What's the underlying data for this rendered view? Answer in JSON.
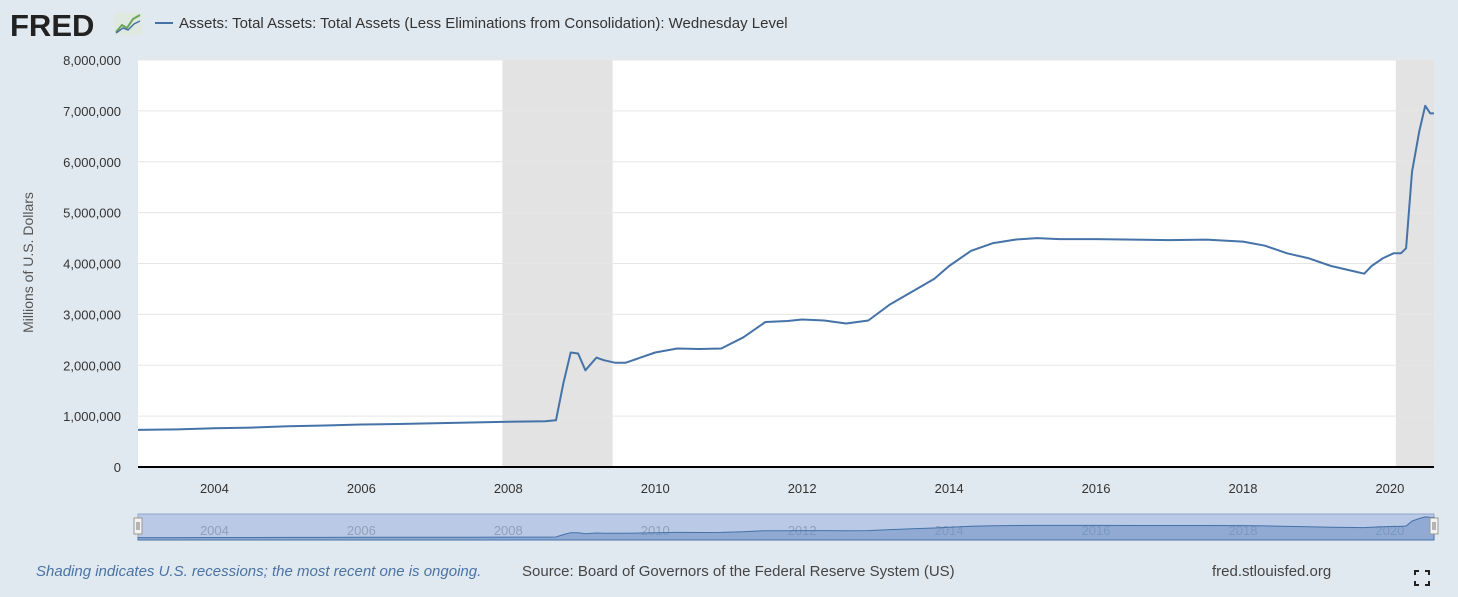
{
  "header": {
    "logo": "FRED",
    "legend_label": "Assets: Total Assets: Total Assets (Less Eliminations from Consolidation): Wednesday Level"
  },
  "footer": {
    "shading_note": "Shading indicates U.S. recessions; the most recent one is ongoing.",
    "source": "Source: Board of Governors of the Federal Reserve System (US)",
    "site": "fred.stlouisfed.org"
  },
  "colors": {
    "line": "#4572a7",
    "recession": "#e3e3e3",
    "background": "#e1e9f0",
    "plot": "#ffffff"
  },
  "icons": [
    "fred-logo-graph-icon",
    "fullscreen-icon"
  ],
  "chart_data": {
    "type": "line",
    "title": "",
    "xlabel": "",
    "ylabel": "Millions of U.S. Dollars",
    "xlim": [
      2002.96,
      2020.6
    ],
    "ylim": [
      0,
      8000000
    ],
    "grid": true,
    "legend": "top-left",
    "yticks": [
      {
        "value": 0,
        "label": "0"
      },
      {
        "value": 1000000,
        "label": "1,000,000"
      },
      {
        "value": 2000000,
        "label": "2,000,000"
      },
      {
        "value": 3000000,
        "label": "3,000,000"
      },
      {
        "value": 4000000,
        "label": "4,000,000"
      },
      {
        "value": 5000000,
        "label": "5,000,000"
      },
      {
        "value": 6000000,
        "label": "6,000,000"
      },
      {
        "value": 7000000,
        "label": "7,000,000"
      },
      {
        "value": 8000000,
        "label": "8,000,000"
      }
    ],
    "xticks": [
      {
        "value": 2004,
        "label": "2004"
      },
      {
        "value": 2006,
        "label": "2006"
      },
      {
        "value": 2008,
        "label": "2008"
      },
      {
        "value": 2010,
        "label": "2010"
      },
      {
        "value": 2012,
        "label": "2012"
      },
      {
        "value": 2014,
        "label": "2014"
      },
      {
        "value": 2016,
        "label": "2016"
      },
      {
        "value": 2018,
        "label": "2018"
      },
      {
        "value": 2020,
        "label": "2020"
      }
    ],
    "recessions": [
      [
        2007.92,
        2009.42
      ],
      [
        2020.08,
        2020.6
      ]
    ],
    "series": [
      {
        "name": "Assets: Total Assets: Total Assets (Less Eliminations from Consolidation): Wednesday Level",
        "x": [
          2002.96,
          2003.5,
          2004.0,
          2004.5,
          2005.0,
          2005.5,
          2006.0,
          2006.5,
          2007.0,
          2007.5,
          2008.0,
          2008.5,
          2008.65,
          2008.75,
          2008.85,
          2008.95,
          2009.05,
          2009.2,
          2009.3,
          2009.45,
          2009.6,
          2009.8,
          2010.0,
          2010.3,
          2010.6,
          2010.9,
          2011.2,
          2011.5,
          2011.8,
          2012.0,
          2012.3,
          2012.6,
          2012.9,
          2013.2,
          2013.5,
          2013.8,
          2014.0,
          2014.3,
          2014.6,
          2014.9,
          2015.2,
          2015.5,
          2016.0,
          2016.5,
          2017.0,
          2017.5,
          2018.0,
          2018.3,
          2018.6,
          2018.9,
          2019.2,
          2019.5,
          2019.65,
          2019.75,
          2019.9,
          2020.05,
          2020.15,
          2020.22,
          2020.3,
          2020.4,
          2020.48,
          2020.55,
          2020.6
        ],
        "y": [
          730000,
          740000,
          760000,
          775000,
          800000,
          815000,
          835000,
          845000,
          860000,
          875000,
          890000,
          900000,
          920000,
          1650000,
          2250000,
          2230000,
          1900000,
          2150000,
          2100000,
          2050000,
          2050000,
          2150000,
          2250000,
          2330000,
          2320000,
          2330000,
          2550000,
          2850000,
          2870000,
          2900000,
          2880000,
          2820000,
          2880000,
          3200000,
          3450000,
          3700000,
          3950000,
          4250000,
          4400000,
          4470000,
          4500000,
          4480000,
          4480000,
          4470000,
          4460000,
          4470000,
          4430000,
          4350000,
          4200000,
          4100000,
          3950000,
          3850000,
          3800000,
          3950000,
          4100000,
          4200000,
          4200000,
          4300000,
          5800000,
          6600000,
          7100000,
          6950000,
          6950000
        ]
      }
    ]
  }
}
